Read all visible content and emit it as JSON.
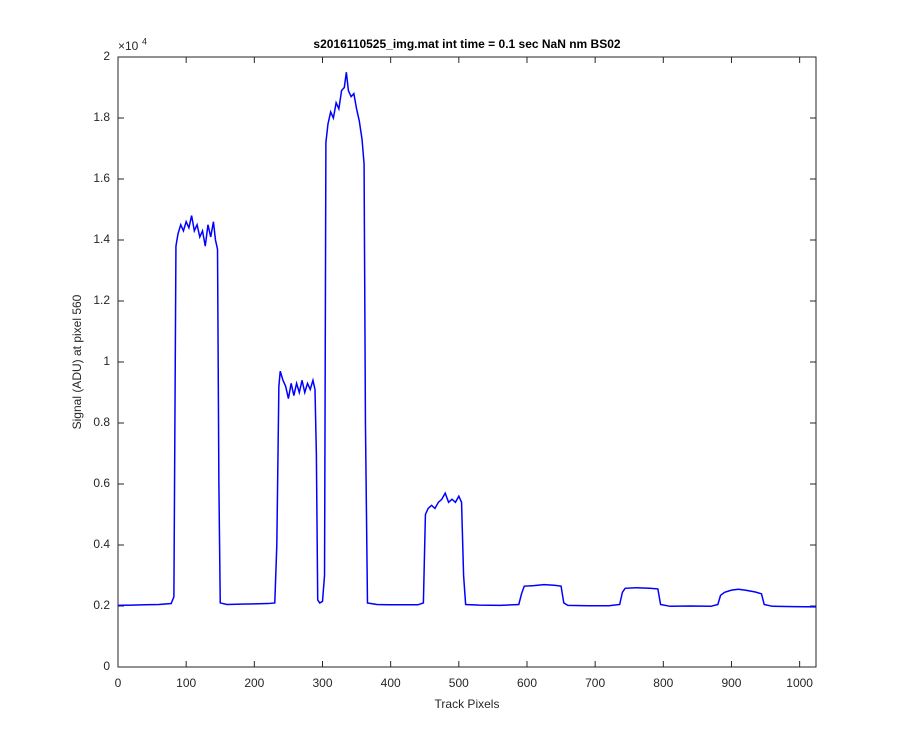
{
  "chart_data": {
    "type": "line",
    "title": "s2016110525_img.mat int time = 0.1 sec  NaN nm BS02",
    "xlabel": "Track Pixels",
    "ylabel": "Signal (ADU) at pixel 560",
    "y_scale_base": "×10",
    "y_scale_exponent": "4",
    "color": "#0000ff",
    "xlim": [
      0,
      1024
    ],
    "ylim": [
      0,
      20000
    ],
    "xticks": [
      0,
      100,
      200,
      300,
      400,
      500,
      600,
      700,
      800,
      900,
      1000
    ],
    "yticks": [
      0,
      {
        "value": 2000,
        "label": "0.2"
      },
      {
        "value": 4000,
        "label": "0.4"
      },
      {
        "value": 6000,
        "label": "0.6"
      },
      {
        "value": 8000,
        "label": "0.8"
      },
      {
        "value": 10000,
        "label": "1"
      },
      {
        "value": 12000,
        "label": "1.2"
      },
      {
        "value": 14000,
        "label": "1.4"
      },
      {
        "value": 16000,
        "label": "1.6"
      },
      {
        "value": 18000,
        "label": "1.8"
      },
      {
        "value": 20000,
        "label": "2"
      }
    ],
    "x": [
      0,
      20,
      40,
      60,
      78,
      82,
      85,
      88,
      92,
      96,
      100,
      104,
      108,
      112,
      116,
      120,
      124,
      128,
      132,
      136,
      140,
      143,
      146,
      148,
      150,
      160,
      180,
      200,
      220,
      230,
      233,
      236,
      238,
      242,
      246,
      250,
      254,
      258,
      262,
      266,
      270,
      274,
      278,
      282,
      286,
      289,
      291,
      293,
      296,
      300,
      303,
      305,
      308,
      312,
      316,
      320,
      324,
      328,
      332,
      335,
      338,
      342,
      346,
      350,
      354,
      358,
      361,
      363,
      366,
      380,
      400,
      420,
      440,
      448,
      451,
      455,
      460,
      465,
      470,
      475,
      480,
      485,
      490,
      495,
      500,
      504,
      507,
      510,
      530,
      560,
      588,
      592,
      596,
      610,
      625,
      640,
      650,
      654,
      660,
      690,
      720,
      736,
      740,
      744,
      760,
      780,
      792,
      796,
      810,
      840,
      870,
      880,
      884,
      890,
      900,
      910,
      920,
      935,
      944,
      948,
      960,
      990,
      1024
    ],
    "values": [
      2020,
      2030,
      2040,
      2050,
      2080,
      2300,
      13800,
      14200,
      14500,
      14300,
      14600,
      14400,
      14800,
      14300,
      14500,
      14100,
      14300,
      13800,
      14500,
      14100,
      14600,
      14000,
      13700,
      6000,
      2100,
      2050,
      2060,
      2070,
      2080,
      2100,
      4000,
      9200,
      9700,
      9400,
      9200,
      8800,
      9300,
      8900,
      9300,
      9000,
      9400,
      9000,
      9300,
      9100,
      9400,
      9100,
      7000,
      2200,
      2100,
      2150,
      3000,
      17200,
      17800,
      18200,
      18000,
      18500,
      18300,
      18900,
      19000,
      19500,
      18900,
      18700,
      18800,
      18300,
      17900,
      17300,
      16500,
      8000,
      2100,
      2050,
      2040,
      2040,
      2040,
      2100,
      5000,
      5200,
      5300,
      5200,
      5400,
      5500,
      5700,
      5400,
      5500,
      5400,
      5600,
      5400,
      3000,
      2050,
      2030,
      2020,
      2050,
      2400,
      2650,
      2670,
      2700,
      2680,
      2650,
      2100,
      2020,
      2010,
      2010,
      2050,
      2450,
      2580,
      2600,
      2580,
      2560,
      2050,
      1990,
      2000,
      1990,
      2050,
      2350,
      2450,
      2520,
      2550,
      2520,
      2460,
      2400,
      2050,
      1990,
      1980,
      1970
    ]
  }
}
